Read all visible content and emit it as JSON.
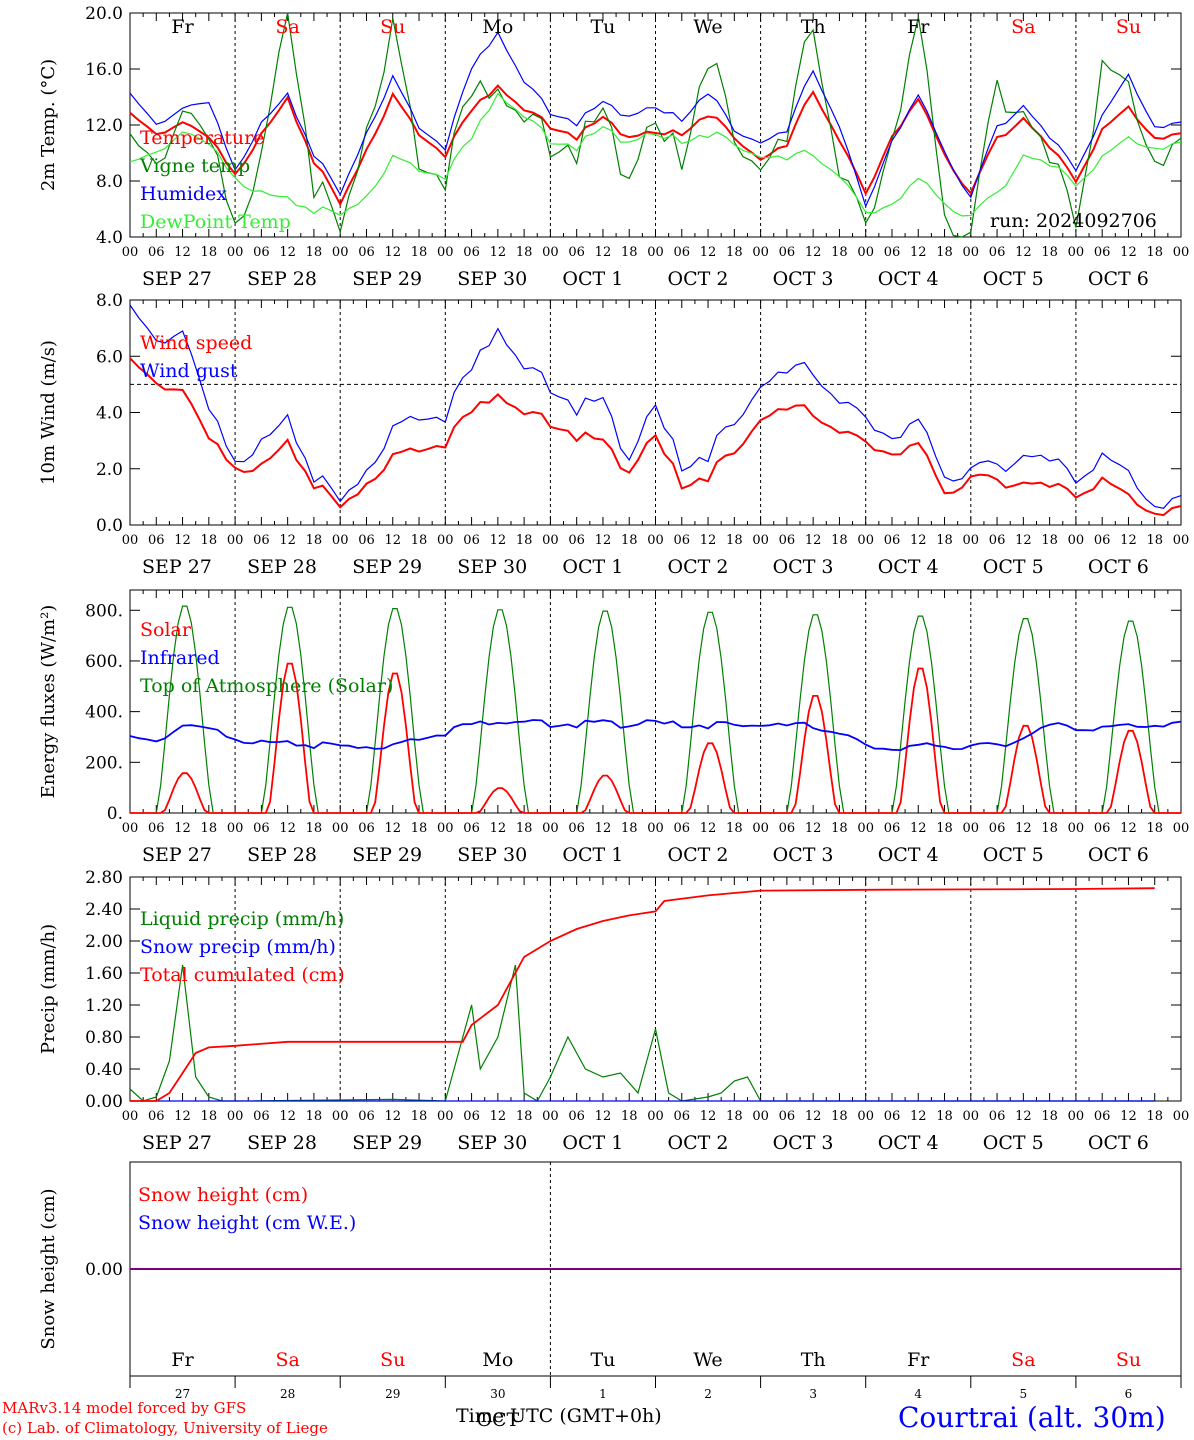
{
  "colors": {
    "red": "#ff0000",
    "green": "#008000",
    "lightgreen": "#33ee33",
    "blue": "#0000ff",
    "purple": "#7f007f"
  },
  "run_label": "run: 2024092706",
  "days_top": [
    {
      "label": "Fr",
      "color": "#000000"
    },
    {
      "label": "Sa",
      "color": "#ff0000"
    },
    {
      "label": "Su",
      "color": "#ff0000"
    },
    {
      "label": "Mo",
      "color": "#000000"
    },
    {
      "label": "Tu",
      "color": "#000000"
    },
    {
      "label": "We",
      "color": "#000000"
    },
    {
      "label": "Th",
      "color": "#000000"
    },
    {
      "label": "Fr",
      "color": "#000000"
    },
    {
      "label": "Sa",
      "color": "#ff0000"
    },
    {
      "label": "Su",
      "color": "#ff0000"
    }
  ],
  "date_labels": [
    "SEP 27",
    "SEP 28",
    "SEP 29",
    "SEP 30",
    "OCT  1",
    "OCT  2",
    "OCT  3",
    "OCT  4",
    "OCT  5",
    "OCT  6"
  ],
  "hour_ticks": [
    "00",
    "06",
    "12",
    "18"
  ],
  "bottom_day_numbers": [
    "27",
    "28",
    "29",
    "30",
    "1",
    "2",
    "3",
    "4",
    "5",
    "6"
  ],
  "bottom_month": "OCT",
  "footer": {
    "model": "MARv3.14 model forced by GFS",
    "lab": "(c) Lab. of Climatology, University of Liege",
    "xlabel": "Time UTC (GMT+0h)",
    "station": "Courtrai (alt. 30m)"
  },
  "chart_data": [
    {
      "type": "line",
      "ylabel": "2m Temp. (°C)",
      "ylim": [
        4.0,
        20.0
      ],
      "yticks": [
        "4.0",
        "8.0",
        "12.0",
        "16.0",
        "20.0"
      ],
      "x_unit": "hours from 2024-09-27 00 UTC",
      "series": [
        {
          "name": "Temperature",
          "color": "#ff0000",
          "x": [
            0,
            6,
            12,
            18,
            24,
            30,
            36,
            42,
            48,
            54,
            60,
            66,
            72,
            78,
            84,
            90,
            96,
            102,
            108,
            114,
            120,
            126,
            132,
            138,
            144,
            150,
            156,
            162,
            168,
            174,
            180,
            186,
            192,
            198,
            204,
            210,
            216,
            222,
            228,
            234
          ],
          "y": [
            12.6,
            11.3,
            12.2,
            11.0,
            8.7,
            11.2,
            13.7,
            9.5,
            6.3,
            10.3,
            14.2,
            11.5,
            10.0,
            13.0,
            15.0,
            13.0,
            12.0,
            11.2,
            12.3,
            11.3,
            11.2,
            11.5,
            12.9,
            11.0,
            9.6,
            10.5,
            14.5,
            11.0,
            6.9,
            11.3,
            13.7,
            10.0,
            7.1,
            11.0,
            12.6,
            10.3,
            8.2,
            11.5,
            13.2,
            11.2
          ]
        },
        {
          "name": "Vigne temp",
          "color": "#008000",
          "x": [
            0,
            6,
            12,
            18,
            24,
            30,
            36,
            42,
            48,
            54,
            60,
            66,
            72,
            78,
            84,
            90,
            96,
            102,
            108,
            114,
            120,
            126,
            132,
            138,
            144,
            150,
            156,
            162,
            168,
            174,
            180,
            186,
            192,
            198,
            204,
            210,
            216,
            222,
            228,
            234
          ],
          "y": [
            10.0,
            9.0,
            13.0,
            10.5,
            6.0,
            9.0,
            20.0,
            8.0,
            4.2,
            12.0,
            19.5,
            10.0,
            8.8,
            14.0,
            15.5,
            12.0,
            11.0,
            10.5,
            11.8,
            9.0,
            11.0,
            10.0,
            17.5,
            10.5,
            9.2,
            10.8,
            19.5,
            9.0,
            4.0,
            11.5,
            19.0,
            6.0,
            4.2,
            14.5,
            13.5,
            9.0,
            6.0,
            15.5,
            14.5,
            10.0
          ]
        },
        {
          "name": "Humidex",
          "color": "#0000ff",
          "x": [
            0,
            6,
            12,
            18,
            24,
            30,
            36,
            42,
            48,
            54,
            60,
            66,
            72,
            78,
            84,
            90,
            96,
            102,
            108,
            114,
            120,
            126,
            132,
            138,
            144,
            150,
            156,
            162,
            168,
            174,
            180,
            186,
            192,
            198,
            204,
            210,
            216,
            222,
            228,
            234
          ],
          "y": [
            14.0,
            12.0,
            13.2,
            13.5,
            9.0,
            12.0,
            14.0,
            10.0,
            7.0,
            11.5,
            15.5,
            12.0,
            10.5,
            16.0,
            18.8,
            15.0,
            13.0,
            12.2,
            13.4,
            12.8,
            13.0,
            12.5,
            14.5,
            11.5,
            10.8,
            11.5,
            16.0,
            12.0,
            6.0,
            11.0,
            14.0,
            10.2,
            6.8,
            11.8,
            13.5,
            11.0,
            9.0,
            12.5,
            15.5,
            12.0
          ]
        },
        {
          "name": "DewPoint Temp",
          "color": "#33ee33",
          "x": [
            0,
            6,
            12,
            18,
            24,
            30,
            36,
            42,
            48,
            54,
            60,
            66,
            72,
            78,
            84,
            90,
            96,
            102,
            108,
            114,
            120,
            126,
            132,
            138,
            144,
            150,
            156,
            162,
            168,
            174,
            180,
            186,
            192,
            198,
            204,
            210,
            216,
            222,
            228,
            234
          ],
          "y": [
            9.0,
            10.0,
            11.5,
            10.5,
            8.5,
            7.0,
            6.5,
            6.0,
            5.5,
            7.0,
            9.8,
            9.0,
            8.5,
            11.0,
            14.5,
            12.5,
            11.0,
            10.5,
            11.5,
            11.0,
            11.0,
            11.0,
            11.5,
            10.5,
            9.8,
            9.5,
            10.0,
            8.5,
            5.5,
            6.5,
            8.0,
            6.5,
            5.5,
            7.0,
            10.0,
            9.0,
            8.0,
            9.5,
            11.0,
            10.5
          ]
        }
      ]
    },
    {
      "type": "line",
      "ylabel": "10m Wind (m/s)",
      "ylim": [
        0.0,
        8.0
      ],
      "yticks": [
        "0.0",
        "2.0",
        "4.0",
        "6.0",
        "8.0"
      ],
      "reference_line": 5.0,
      "series": [
        {
          "name": "Wind speed",
          "color": "#ff0000",
          "x": [
            0,
            6,
            12,
            18,
            24,
            30,
            36,
            42,
            48,
            54,
            60,
            66,
            72,
            78,
            84,
            90,
            96,
            102,
            108,
            114,
            120,
            126,
            132,
            138,
            144,
            150,
            156,
            162,
            168,
            174,
            180,
            186,
            192,
            198,
            204,
            210,
            216,
            222,
            228,
            234
          ],
          "y": [
            5.7,
            5.0,
            4.8,
            3.0,
            2.2,
            2.0,
            2.8,
            1.5,
            0.6,
            1.5,
            2.5,
            2.8,
            3.0,
            4.0,
            4.8,
            3.9,
            3.7,
            3.2,
            2.8,
            2.0,
            3.0,
            1.5,
            1.8,
            2.5,
            3.8,
            4.1,
            4.0,
            3.4,
            2.8,
            2.6,
            2.8,
            1.2,
            1.7,
            1.5,
            1.6,
            1.3,
            1.2,
            1.5,
            1.0,
            0.5
          ]
        },
        {
          "name": "Wind gust",
          "color": "#0000ff",
          "x": [
            0,
            6,
            12,
            18,
            24,
            30,
            36,
            42,
            48,
            54,
            60,
            66,
            72,
            78,
            84,
            90,
            96,
            102,
            108,
            114,
            120,
            126,
            132,
            138,
            144,
            150,
            156,
            162,
            168,
            174,
            180,
            186,
            192,
            198,
            204,
            210,
            216,
            222,
            228,
            234
          ],
          "y": [
            7.5,
            6.5,
            6.9,
            4.0,
            2.5,
            2.8,
            3.6,
            1.8,
            0.8,
            2.0,
            3.5,
            4.0,
            4.0,
            5.5,
            7.2,
            5.5,
            5.0,
            4.2,
            4.2,
            2.5,
            4.0,
            2.2,
            2.6,
            3.5,
            5.0,
            5.4,
            5.5,
            4.5,
            3.6,
            3.2,
            3.6,
            1.8,
            2.0,
            2.0,
            2.6,
            2.2,
            1.8,
            2.3,
            1.8,
            0.8
          ]
        }
      ]
    },
    {
      "type": "line",
      "ylabel": "Energy fluxes (W/m²)",
      "ylim": [
        0,
        880
      ],
      "yticks": [
        "0.",
        "200.",
        "400.",
        "600.",
        "800."
      ],
      "series": [
        {
          "name": "Solar",
          "color": "#ff0000",
          "peaks": [
            160,
            600,
            560,
            100,
            150,
            280,
            470,
            580,
            350,
            330
          ]
        },
        {
          "name": "Infrared",
          "color": "#0000ff",
          "x": [
            0,
            6,
            12,
            18,
            24,
            30,
            36,
            42,
            48,
            54,
            60,
            66,
            72,
            78,
            84,
            90,
            96,
            102,
            108,
            114,
            120,
            126,
            132,
            138,
            144,
            150,
            156,
            162,
            168,
            174,
            180,
            186,
            192,
            198,
            204,
            210,
            216,
            222,
            228,
            234
          ],
          "y": [
            290,
            280,
            345,
            330,
            300,
            275,
            270,
            268,
            265,
            262,
            270,
            300,
            320,
            350,
            365,
            358,
            352,
            350,
            352,
            350,
            352,
            350,
            348,
            345,
            348,
            345,
            342,
            320,
            260,
            255,
            262,
            265,
            265,
            264,
            300,
            345,
            340,
            330,
            345,
            350
          ]
        },
        {
          "name": "Top of Atmosphere (Solar)",
          "color": "#008000",
          "peaks": [
            825,
            820,
            815,
            810,
            805,
            800,
            790,
            785,
            775,
            765
          ]
        }
      ]
    },
    {
      "type": "line",
      "ylabel": "Precip (mm/h)",
      "ylim": [
        0.0,
        2.8
      ],
      "yticks": [
        "0.00",
        "0.40",
        "0.80",
        "1.20",
        "1.60",
        "2.00",
        "2.40",
        "2.80"
      ],
      "series": [
        {
          "name": "Liquid precip (mm/h)",
          "color": "#008000",
          "x": [
            0,
            3,
            6,
            9,
            12,
            15,
            18,
            21,
            24,
            60,
            72,
            78,
            80,
            84,
            88,
            90,
            93,
            96,
            100,
            104,
            108,
            112,
            116,
            120,
            123,
            126,
            132,
            135,
            138,
            141,
            144,
            150,
            180,
            234
          ],
          "y": [
            0.15,
            0,
            0.05,
            0.5,
            1.7,
            0.3,
            0.05,
            0,
            0,
            0.02,
            0,
            1.2,
            0.4,
            0.8,
            1.7,
            0.1,
            0,
            0.3,
            0.8,
            0.4,
            0.3,
            0.35,
            0.1,
            0.9,
            0.1,
            0,
            0.05,
            0.1,
            0.25,
            0.3,
            0,
            0,
            0,
            0
          ]
        },
        {
          "name": "Snow precip (mm/h)",
          "color": "#0000ff",
          "x": [
            0,
            234
          ],
          "y": [
            0,
            0
          ]
        },
        {
          "name": "Total cumulated (cm)",
          "color": "#ff0000",
          "x": [
            0,
            6,
            9,
            12,
            15,
            18,
            24,
            36,
            48,
            60,
            72,
            76,
            78,
            84,
            90,
            96,
            102,
            108,
            114,
            120,
            122,
            132,
            138,
            144,
            168,
            192,
            216,
            234
          ],
          "y": [
            0,
            0,
            0.1,
            0.35,
            0.6,
            0.67,
            0.69,
            0.74,
            0.74,
            0.74,
            0.74,
            0.74,
            0.95,
            1.2,
            1.8,
            2.0,
            2.15,
            2.25,
            2.32,
            2.37,
            2.5,
            2.57,
            2.6,
            2.63,
            2.64,
            2.645,
            2.65,
            2.66
          ]
        }
      ]
    },
    {
      "type": "line",
      "ylabel": "Snow height (cm)",
      "ylim": [
        -1,
        1
      ],
      "yticks": [
        "0.00"
      ],
      "series": [
        {
          "name": "Snow height (cm)",
          "color": "#ff0000",
          "x": [
            0,
            234
          ],
          "y": [
            0,
            0
          ]
        },
        {
          "name": "Snow height (cm W.E.)",
          "color": "#0000ff",
          "x": [
            0,
            234
          ],
          "y": [
            0,
            0
          ]
        }
      ]
    }
  ]
}
